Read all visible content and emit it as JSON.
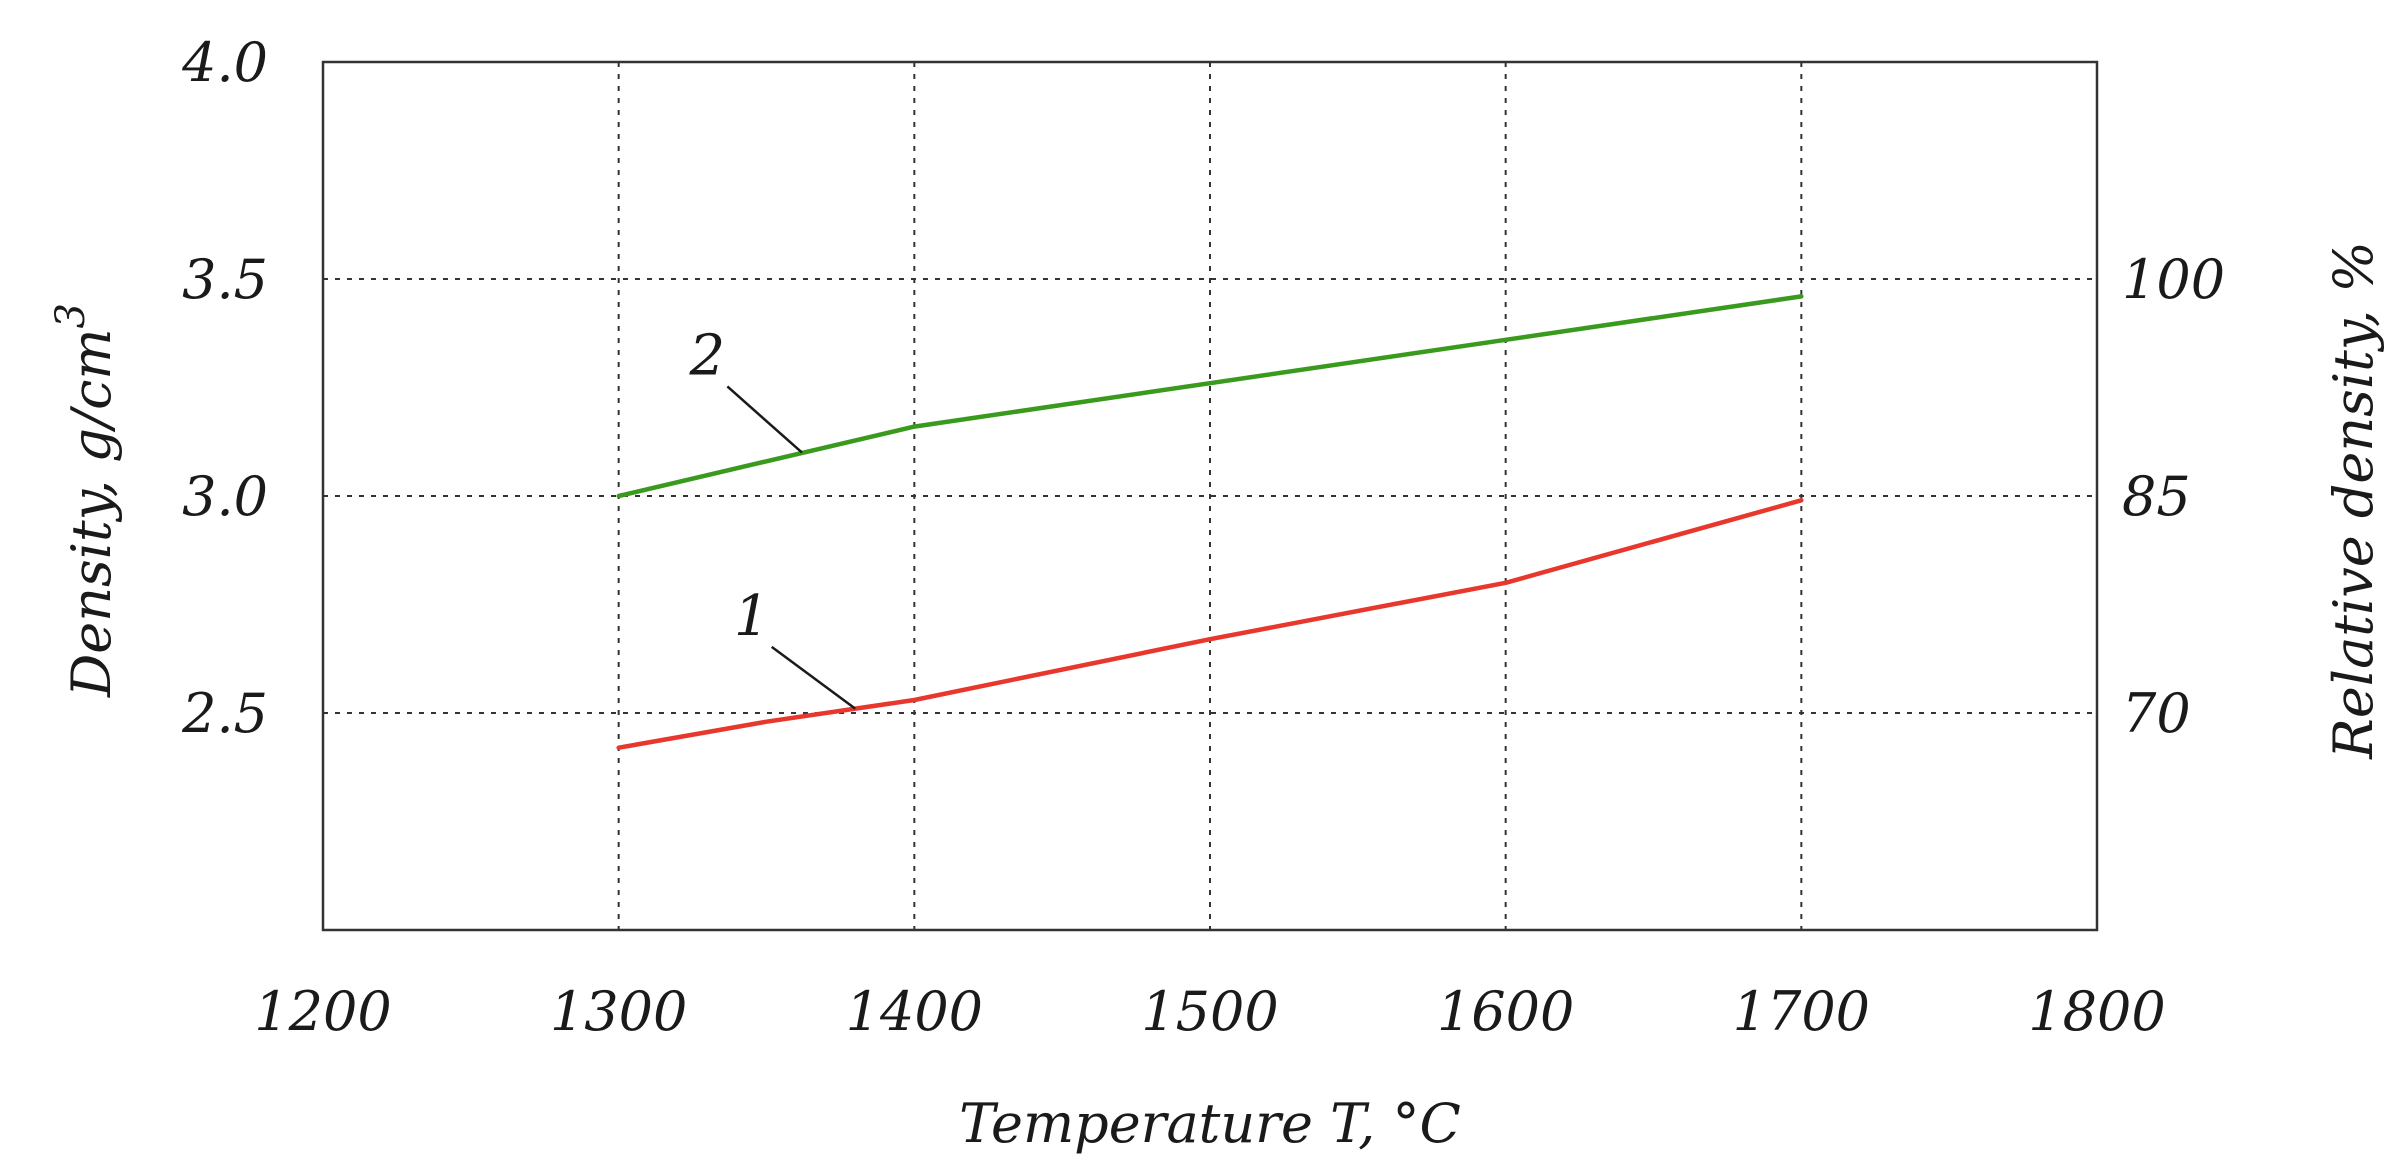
{
  "chart_data": {
    "type": "line",
    "title": "",
    "xlabel": "Temperature T, °C",
    "ylabel": "Density, g/cm",
    "ylabel_superscript": "3",
    "y2label": "Relative density, %",
    "xlim": [
      1200,
      1800
    ],
    "ylim": [
      2.0,
      4.0
    ],
    "grid": true,
    "x_ticks": [
      {
        "value": 1200,
        "label": "1200"
      },
      {
        "value": 1300,
        "label": "1300"
      },
      {
        "value": 1400,
        "label": "1400"
      },
      {
        "value": 1500,
        "label": "1500"
      },
      {
        "value": 1600,
        "label": "1600"
      },
      {
        "value": 1700,
        "label": "1700"
      },
      {
        "value": 1800,
        "label": "1800"
      }
    ],
    "y_ticks": [
      {
        "value": 2.5,
        "label": "2.5"
      },
      {
        "value": 3.0,
        "label": "3.0"
      },
      {
        "value": 3.5,
        "label": "3.5"
      },
      {
        "value": 4.0,
        "label": "4.0"
      }
    ],
    "y2_ticks": [
      {
        "value": 2.5,
        "label": "70"
      },
      {
        "value": 3.0,
        "label": "85"
      },
      {
        "value": 3.5,
        "label": "100"
      }
    ],
    "series": [
      {
        "name": "1",
        "color": "#e8372c",
        "x": [
          1300,
          1350,
          1400,
          1500,
          1600,
          1700
        ],
        "values": [
          2.42,
          2.48,
          2.53,
          2.67,
          2.8,
          2.99
        ],
        "label_at": {
          "x": 1380,
          "y": 2.51
        },
        "label_text_at": {
          "x": 1345,
          "y": 2.68
        }
      },
      {
        "name": "2",
        "color": "#3a9a1e",
        "x": [
          1300,
          1350,
          1400,
          1500,
          1600,
          1700
        ],
        "values": [
          3.0,
          3.08,
          3.16,
          3.26,
          3.36,
          3.46
        ],
        "label_at": {
          "x": 1362,
          "y": 3.1
        },
        "label_text_at": {
          "x": 1330,
          "y": 3.28
        }
      }
    ]
  }
}
